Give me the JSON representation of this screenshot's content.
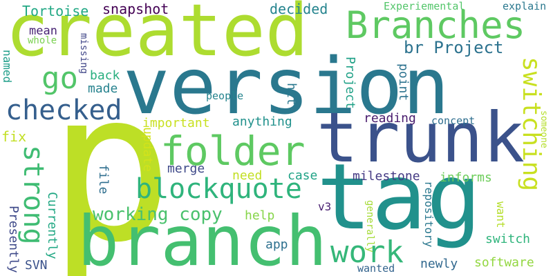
{
  "words": [
    {
      "id": "p",
      "text": "p",
      "color": "#bddf26"
    },
    {
      "id": "version",
      "text": "version",
      "color": "#2a788e"
    },
    {
      "id": "created",
      "text": "created",
      "color": "#addc30"
    },
    {
      "id": "trunk",
      "text": "trunk",
      "color": "#3b528b"
    },
    {
      "id": "tag",
      "text": "tag",
      "color": "#21918c"
    },
    {
      "id": "branch",
      "text": "branch",
      "color": "#44bf70"
    },
    {
      "id": "branches",
      "text": "Branches",
      "color": "#5ec962"
    },
    {
      "id": "folder",
      "text": "folder",
      "color": "#5ec962"
    },
    {
      "id": "checked",
      "text": "checked",
      "color": "#355f8d"
    },
    {
      "id": "blockquote",
      "text": "blockquote",
      "color": "#2fb47c"
    },
    {
      "id": "switching",
      "text": "switching",
      "color": "#c8e020"
    },
    {
      "id": "strong",
      "text": "strong",
      "color": "#3fbc73"
    },
    {
      "id": "go",
      "text": "go",
      "color": "#52c569"
    },
    {
      "id": "work",
      "text": "work",
      "color": "#35b779"
    },
    {
      "id": "br_project",
      "text": "br Project",
      "color": "#2c728e"
    },
    {
      "id": "working_copy",
      "text": "working copy",
      "color": "#4ac16d"
    },
    {
      "id": "tortoise",
      "text": "Tortoise",
      "color": "#22a884"
    },
    {
      "id": "snapshot",
      "text": "snapshot",
      "color": "#440154"
    },
    {
      "id": "decided",
      "text": "decided",
      "color": "#25848e"
    },
    {
      "id": "experiemental",
      "text": "Experiemental",
      "color": "#52c569"
    },
    {
      "id": "explain",
      "text": "explain",
      "color": "#2a788e"
    },
    {
      "id": "mean",
      "text": "mean",
      "color": "#482475"
    },
    {
      "id": "whole",
      "text": "whole",
      "color": "#7ad151"
    },
    {
      "id": "missing",
      "text": "missing",
      "color": "#404688"
    },
    {
      "id": "named",
      "text": "named",
      "color": "#1f9e89"
    },
    {
      "id": "back",
      "text": "back",
      "color": "#29af7f"
    },
    {
      "id": "made",
      "text": "made",
      "color": "#26828e"
    },
    {
      "id": "people",
      "text": "people",
      "color": "#25848e"
    },
    {
      "id": "project",
      "text": "Project",
      "color": "#1fa187"
    },
    {
      "id": "hit",
      "text": "hit",
      "color": "#2a788e"
    },
    {
      "id": "point",
      "text": "point",
      "color": "#2c728e"
    },
    {
      "id": "fix",
      "text": "fix",
      "color": "#c2df23"
    },
    {
      "id": "important",
      "text": "important",
      "color": "#c8e020"
    },
    {
      "id": "anything",
      "text": "anything",
      "color": "#21918c"
    },
    {
      "id": "reading",
      "text": "reading",
      "color": "#481b6d"
    },
    {
      "id": "concept",
      "text": "concept",
      "color": "#2e6e8e"
    },
    {
      "id": "someone",
      "text": "someone",
      "color": "#b5de2b"
    },
    {
      "id": "update",
      "text": "update",
      "color": "#d2e21b"
    },
    {
      "id": "merge",
      "text": "merge",
      "color": "#3e4989"
    },
    {
      "id": "file",
      "text": "file",
      "color": "#2e6e8e"
    },
    {
      "id": "need",
      "text": "need",
      "color": "#c2df23"
    },
    {
      "id": "case",
      "text": "case",
      "color": "#20a386"
    },
    {
      "id": "milestone",
      "text": "milestone",
      "color": "#443983"
    },
    {
      "id": "informs",
      "text": "informs",
      "color": "#6ccd5a"
    },
    {
      "id": "presently",
      "text": "Presently",
      "color": "#3e4989"
    },
    {
      "id": "currently",
      "text": "Currently",
      "color": "#22a884"
    },
    {
      "id": "help",
      "text": "help",
      "color": "#86d549"
    },
    {
      "id": "v3",
      "text": "v3",
      "color": "#481f70"
    },
    {
      "id": "want",
      "text": "want",
      "color": "#b5de2b"
    },
    {
      "id": "generally",
      "text": "generally",
      "color": "#a5db36"
    },
    {
      "id": "repository",
      "text": "repository",
      "color": "#2a788e"
    },
    {
      "id": "app",
      "text": "app",
      "color": "#2d708e"
    },
    {
      "id": "switch",
      "text": "switch",
      "color": "#2fb47c"
    },
    {
      "id": "svn",
      "text": "SVN",
      "color": "#3b528b"
    },
    {
      "id": "newly",
      "text": "newly",
      "color": "#31688e"
    },
    {
      "id": "software",
      "text": "software",
      "color": "#93d741"
    },
    {
      "id": "wanted",
      "text": "wanted",
      "color": "#33638d"
    }
  ]
}
